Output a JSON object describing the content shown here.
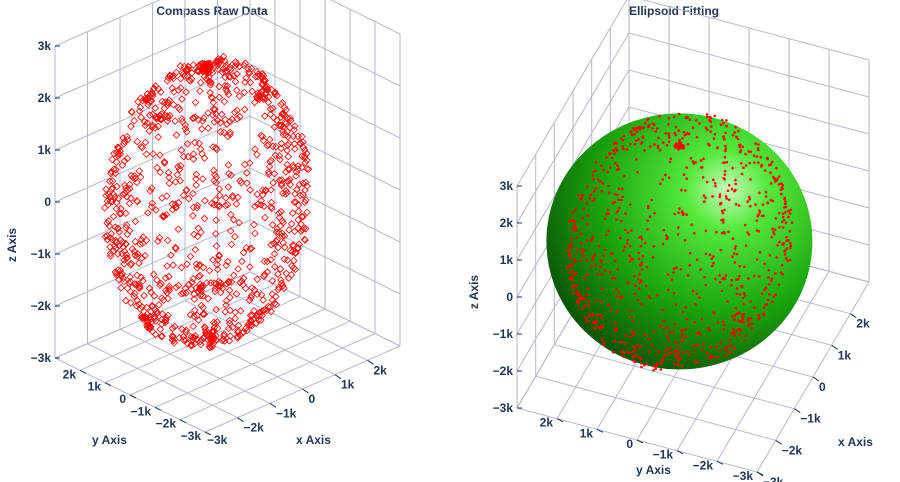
{
  "colors": {
    "points": "#ff0000",
    "grid": "#b3b8cc",
    "text": "#1f3552",
    "sphere_light": "#9dff8a",
    "sphere_mid": "#22bb11",
    "sphere_dark": "#0a4a07"
  },
  "chart_data": [
    {
      "id": "raw",
      "type": "scatter3d",
      "title": "Compass Raw Data",
      "marker": "diamond-open",
      "xlabel": "x Axis",
      "ylabel": "y Axis",
      "zlabel": "z Axis",
      "xlim": [
        -3000,
        3000
      ],
      "ylim": [
        -3000,
        3000
      ],
      "zlim": [
        -3000,
        3000
      ],
      "x_ticks": [
        {
          "v": -2000,
          "label": "−2k"
        },
        {
          "v": -1000,
          "label": "−1k"
        },
        {
          "v": 0,
          "label": "0"
        },
        {
          "v": 1000,
          "label": "1k"
        },
        {
          "v": 2000,
          "label": "2k"
        }
      ],
      "y_ticks": [
        {
          "v": -3000,
          "label": "−3k"
        },
        {
          "v": -2000,
          "label": "−2k"
        },
        {
          "v": -1000,
          "label": "−1k"
        },
        {
          "v": 0,
          "label": "0"
        },
        {
          "v": 1000,
          "label": "1k"
        },
        {
          "v": 2000,
          "label": "2k"
        }
      ],
      "x_end_label": "−3k",
      "z_ticks": [
        {
          "v": -3000,
          "label": "−3k"
        },
        {
          "v": -2000,
          "label": "−2k"
        },
        {
          "v": -1000,
          "label": "−1k"
        },
        {
          "v": 0,
          "label": "0"
        },
        {
          "v": 1000,
          "label": "1k"
        },
        {
          "v": 2000,
          "label": "2k"
        },
        {
          "v": 3000,
          "label": "3k"
        }
      ],
      "ellipsoid_center": [
        -400,
        300,
        -100
      ],
      "ellipsoid_radii": [
        2500,
        2400,
        2600
      ],
      "sample_count": 1100
    },
    {
      "id": "fit",
      "type": "scatter3d+surface",
      "title": "Ellipsoid Fitting",
      "marker": "dot",
      "xlabel": "x Axis",
      "ylabel": "y Axis",
      "zlabel": "z Axis",
      "xlim": [
        -3000,
        3000
      ],
      "ylim": [
        -3000,
        3000
      ],
      "zlim": [
        -3000,
        3000
      ],
      "x_ticks": [
        {
          "v": -3000,
          "label": "−3k"
        },
        {
          "v": -2000,
          "label": "−2k"
        },
        {
          "v": -1000,
          "label": "−1k"
        },
        {
          "v": 0,
          "label": "0"
        },
        {
          "v": 1000,
          "label": "1k"
        },
        {
          "v": 2000,
          "label": "2k"
        }
      ],
      "y_ticks": [
        {
          "v": -3000,
          "label": "−3k"
        },
        {
          "v": -2000,
          "label": "−2k"
        },
        {
          "v": -1000,
          "label": "−1k"
        },
        {
          "v": 0,
          "label": "0"
        },
        {
          "v": 1000,
          "label": "1k"
        },
        {
          "v": 2000,
          "label": "2k"
        }
      ],
      "z_ticks": [
        {
          "v": -3000,
          "label": "−3k"
        },
        {
          "v": -2000,
          "label": "−2k"
        },
        {
          "v": -1000,
          "label": "−1k"
        },
        {
          "v": 0,
          "label": "0"
        },
        {
          "v": 1000,
          "label": "1k"
        },
        {
          "v": 2000,
          "label": "2k"
        },
        {
          "v": 3000,
          "label": "3k"
        }
      ],
      "ellipsoid_center": [
        -300,
        200,
        0
      ],
      "ellipsoid_radii": [
        2500,
        2500,
        2600
      ],
      "sample_count": 900
    }
  ]
}
